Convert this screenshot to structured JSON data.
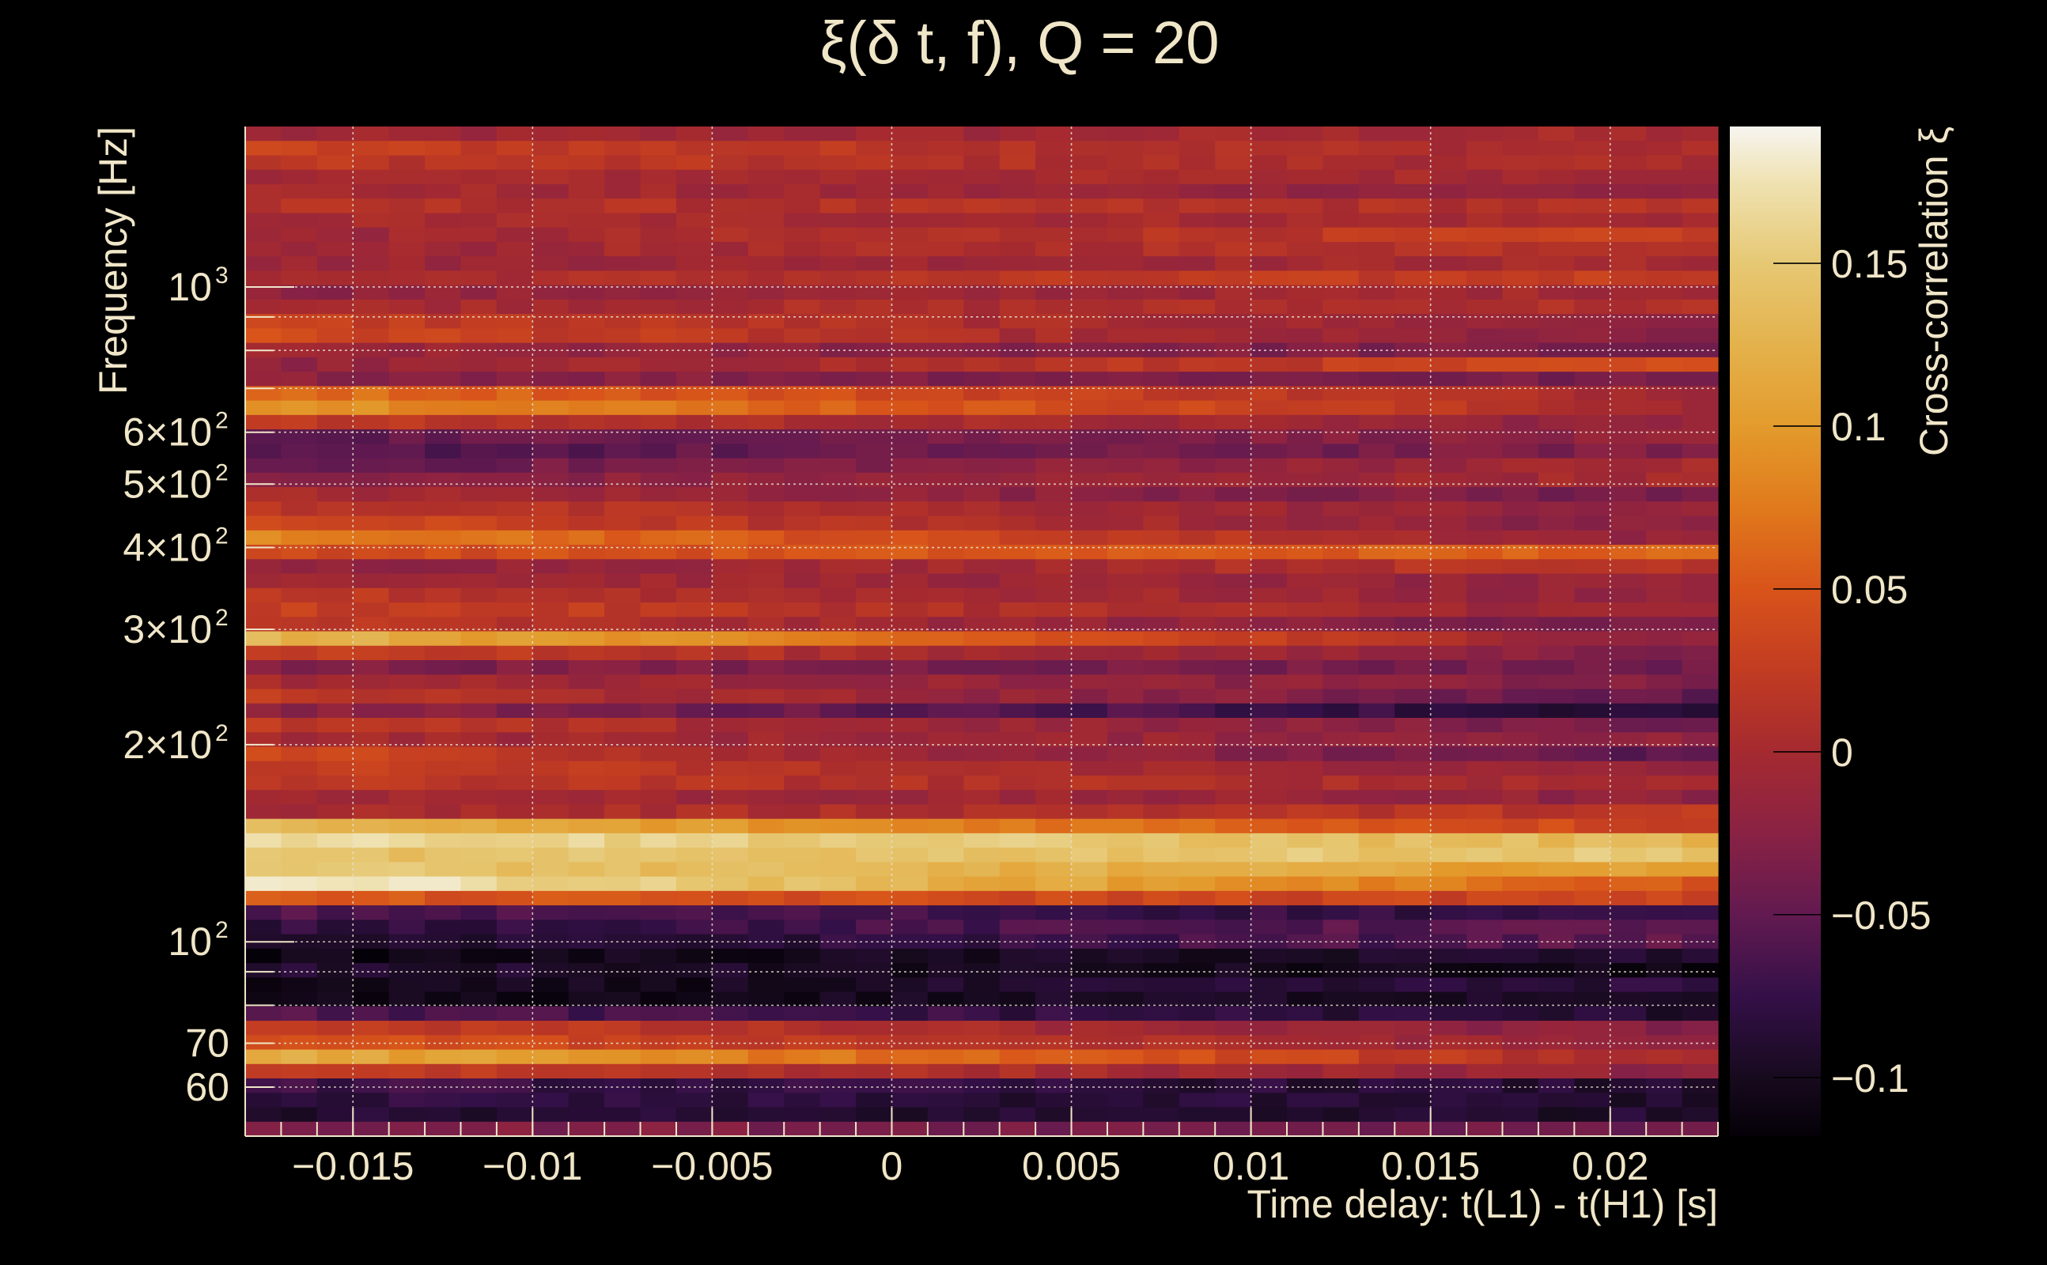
{
  "chart_data": {
    "type": "heatmap",
    "title": "ξ(δ t, f), Q = 20",
    "xlabel": "Time delay: t(L1) - t(H1) [s]",
    "ylabel": "Frequency [Hz]",
    "colorbar_label": "Cross-correlation ξ",
    "xlim": [
      -0.018,
      0.023
    ],
    "ylim": [
      50.5,
      1758
    ],
    "yscale": "log",
    "clim": [
      -0.118,
      0.192
    ],
    "x_ticks": [
      {
        "value": -0.015,
        "label": "−0.015"
      },
      {
        "value": -0.01,
        "label": "−0.01"
      },
      {
        "value": -0.005,
        "label": "−0.005"
      },
      {
        "value": 0,
        "label": "0"
      },
      {
        "value": 0.005,
        "label": "0.005"
      },
      {
        "value": 0.01,
        "label": "0.01"
      },
      {
        "value": 0.015,
        "label": "0.015"
      },
      {
        "value": 0.02,
        "label": "0.02"
      }
    ],
    "y_ticks": [
      {
        "value": 1000,
        "base": "10",
        "exp": "3"
      },
      {
        "value": 600,
        "base": "6×10",
        "exp": "2"
      },
      {
        "value": 500,
        "base": "5×10",
        "exp": "2"
      },
      {
        "value": 400,
        "base": "4×10",
        "exp": "2"
      },
      {
        "value": 300,
        "base": "3×10",
        "exp": "2"
      },
      {
        "value": 200,
        "base": "2×10",
        "exp": "2"
      },
      {
        "value": 100,
        "base": "10",
        "exp": "2"
      },
      {
        "value": 70,
        "base": "70",
        "exp": ""
      },
      {
        "value": 60,
        "base": "60",
        "exp": ""
      }
    ],
    "y_grid": [
      60,
      70,
      80,
      90,
      100,
      200,
      300,
      400,
      500,
      600,
      700,
      800,
      900,
      1000
    ],
    "colorbar_ticks": [
      {
        "value": 0.15,
        "label": "0.15"
      },
      {
        "value": 0.1,
        "label": "0.1"
      },
      {
        "value": 0.05,
        "label": "0.05"
      },
      {
        "value": 0,
        "label": "0"
      },
      {
        "value": -0.05,
        "label": "−0.05"
      },
      {
        "value": -0.1,
        "label": "−0.1"
      }
    ],
    "time_bin": 0.001,
    "rows_top_to_bottom_xi_left_right": [
      [
        -0.01,
        0.0
      ],
      [
        0.03,
        0.0
      ],
      [
        0.02,
        0.0
      ],
      [
        0.0,
        0.0
      ],
      [
        0.0,
        -0.02
      ],
      [
        0.01,
        0.01
      ],
      [
        0.0,
        0.0
      ],
      [
        -0.01,
        0.03
      ],
      [
        -0.01,
        0.02
      ],
      [
        -0.01,
        0.0
      ],
      [
        0.0,
        0.03
      ],
      [
        -0.02,
        0.0
      ],
      [
        0.0,
        0.01
      ],
      [
        0.03,
        -0.02
      ],
      [
        0.04,
        -0.03
      ],
      [
        -0.01,
        -0.04
      ],
      [
        -0.02,
        0.04
      ],
      [
        -0.02,
        -0.04
      ],
      [
        0.07,
        0.0
      ],
      [
        0.1,
        0.0
      ],
      [
        0.02,
        -0.02
      ],
      [
        -0.05,
        -0.02
      ],
      [
        -0.06,
        -0.03
      ],
      [
        -0.05,
        0.0
      ],
      [
        -0.03,
        0.0
      ],
      [
        0.0,
        -0.04
      ],
      [
        0.02,
        -0.02
      ],
      [
        0.04,
        -0.03
      ],
      [
        0.09,
        -0.02
      ],
      [
        0.04,
        0.06
      ],
      [
        -0.02,
        0.02
      ],
      [
        0.0,
        -0.02
      ],
      [
        0.02,
        -0.02
      ],
      [
        0.03,
        -0.01
      ],
      [
        0.02,
        -0.04
      ],
      [
        0.13,
        -0.02
      ],
      [
        0.03,
        -0.03
      ],
      [
        -0.03,
        -0.04
      ],
      [
        0.0,
        -0.03
      ],
      [
        0.02,
        -0.05
      ],
      [
        -0.02,
        -0.09
      ],
      [
        0.02,
        -0.04
      ],
      [
        0.0,
        -0.02
      ],
      [
        0.04,
        -0.06
      ],
      [
        0.03,
        -0.02
      ],
      [
        0.02,
        0.0
      ],
      [
        0.0,
        -0.02
      ],
      [
        0.0,
        0.02
      ],
      [
        0.13,
        0.03
      ],
      [
        0.17,
        0.13
      ],
      [
        0.14,
        0.15
      ],
      [
        0.15,
        0.1
      ],
      [
        0.19,
        0.05
      ],
      [
        0.05,
        0.03
      ],
      [
        -0.06,
        -0.08
      ],
      [
        -0.08,
        -0.05
      ],
      [
        -0.1,
        -0.05
      ],
      [
        -0.11,
        -0.09
      ],
      [
        -0.09,
        -0.11
      ],
      [
        -0.11,
        -0.08
      ],
      [
        -0.11,
        -0.09
      ],
      [
        -0.06,
        -0.09
      ],
      [
        0.03,
        -0.03
      ],
      [
        0.05,
        -0.02
      ],
      [
        0.12,
        0.0
      ],
      [
        0.03,
        -0.02
      ],
      [
        -0.07,
        -0.09
      ],
      [
        -0.08,
        -0.09
      ],
      [
        -0.09,
        -0.09
      ],
      [
        -0.03,
        -0.04
      ]
    ],
    "colormap_stops": [
      [
        -0.118,
        "#050108"
      ],
      [
        -0.1,
        "#170a1e"
      ],
      [
        -0.075,
        "#341048"
      ],
      [
        -0.05,
        "#621a50"
      ],
      [
        -0.025,
        "#8a2244"
      ],
      [
        0.0,
        "#a52a30"
      ],
      [
        0.025,
        "#c23c22"
      ],
      [
        0.05,
        "#d8541a"
      ],
      [
        0.075,
        "#e07a1c"
      ],
      [
        0.1,
        "#e39b2c"
      ],
      [
        0.125,
        "#e4b24c"
      ],
      [
        0.15,
        "#e6c874"
      ],
      [
        0.175,
        "#efe2b2"
      ],
      [
        0.192,
        "#f7f5f0"
      ]
    ]
  }
}
